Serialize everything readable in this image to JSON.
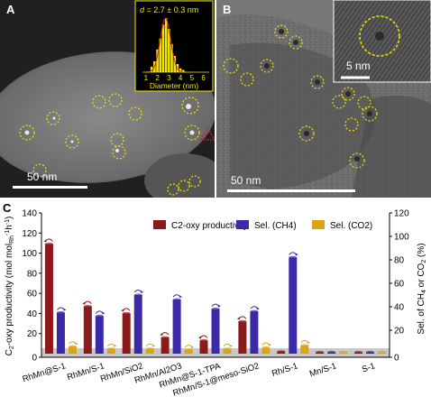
{
  "panel_a": {
    "label": "A",
    "scalebar": "50 nm",
    "inset": {
      "label_d": "d",
      "label_value": " = 2.7 ± 0.3 nm",
      "xlabel": "Diameter (nm)",
      "ticks": [
        "1",
        "2",
        "3",
        "4",
        "5",
        "6"
      ],
      "bins": [
        {
          "x": 1.5,
          "v": 0.1
        },
        {
          "x": 1.75,
          "v": 0.2
        },
        {
          "x": 2.0,
          "v": 0.42
        },
        {
          "x": 2.25,
          "v": 0.62
        },
        {
          "x": 2.5,
          "v": 0.88
        },
        {
          "x": 2.75,
          "v": 1.0
        },
        {
          "x": 3.0,
          "v": 0.8
        },
        {
          "x": 3.25,
          "v": 0.52
        },
        {
          "x": 3.5,
          "v": 0.3
        },
        {
          "x": 3.75,
          "v": 0.15
        },
        {
          "x": 4.0,
          "v": 0.07
        },
        {
          "x": 4.25,
          "v": 0.04
        }
      ]
    }
  },
  "panel_b": {
    "label": "B",
    "scalebar": "50 nm",
    "inset_scalebar": "5 nm"
  },
  "panel_c": {
    "label": "C",
    "legend": [
      "C2-oxy productivity",
      "Sel. (CH4)",
      "Sel. (CO2)"
    ],
    "ylabel_left": "C2-oxy productivity (mol molRh-1h-1)",
    "ylabel_right": "Sel. of CH4 or CO2 (%)",
    "categories": [
      "RhMn@S-1",
      "RhMn/S-1",
      "RhMn/SiO2",
      "RhMn/Al2O3",
      "RhMn@S-1-TPA",
      "RhMn/S-1@meso-SiO2",
      "Rh/S-1",
      "Mn/S-1",
      "S-1"
    ]
  },
  "chart_data": {
    "type": "bar",
    "categories": [
      "RhMn@S-1",
      "RhMn/S-1",
      "RhMn/SiO2",
      "RhMn/Al2O3",
      "RhMn@S-1-TPA",
      "RhMn/S-1@meso-SiO2",
      "Rh/S-1",
      "Mn/S-1",
      "S-1"
    ],
    "series": [
      {
        "name": "C2-oxy productivity",
        "axis": "left",
        "color": "#8b1a1a",
        "values": [
          109,
          47,
          40,
          16,
          13,
          32,
          2,
          0.5,
          0.5
        ]
      },
      {
        "name": "Sel. (CH4)",
        "axis": "right",
        "color": "#3a2aa8",
        "values": [
          35,
          32,
          50,
          46,
          38,
          36,
          82,
          0.5,
          0.5
        ]
      },
      {
        "name": "Sel. (CO2)",
        "axis": "right",
        "color": "#d9a514",
        "values": [
          6,
          4,
          4,
          3,
          4,
          5,
          7,
          0.5,
          0.5
        ]
      }
    ],
    "ylim_left": [
      0,
      140
    ],
    "ylim_right": [
      0,
      120
    ],
    "yticks_left": [
      "0",
      "20",
      "40",
      "60",
      "80",
      "100",
      "120",
      "140"
    ],
    "yticks_right": [
      "0",
      "20",
      "40",
      "60",
      "80",
      "100",
      "120"
    ],
    "ylabel_left": "C2-oxy productivity (mol molRh-1h-1)",
    "ylabel_right": "Sel. of CH4 or CO2 (%)",
    "legend_position": "top"
  }
}
